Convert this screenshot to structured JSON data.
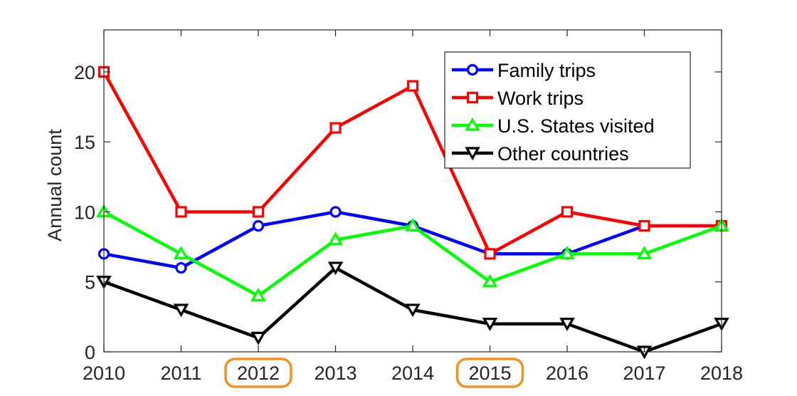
{
  "chart_data": {
    "type": "line",
    "title": "",
    "xlabel": "",
    "ylabel": "Annual count",
    "x": [
      2010,
      2011,
      2012,
      2013,
      2014,
      2015,
      2016,
      2017,
      2018
    ],
    "x_tick_labels": [
      "2010",
      "2011",
      "2012",
      "2013",
      "2014",
      "2015",
      "2016",
      "2017",
      "2018"
    ],
    "xlim": [
      2010,
      2018
    ],
    "ylim": [
      0,
      23
    ],
    "y_ticks": [
      0,
      5,
      10,
      15,
      20
    ],
    "y_tick_labels": [
      "0",
      "5",
      "10",
      "15",
      "20"
    ],
    "grid": false,
    "legend_position": "top-right",
    "highlighted_x_ticks": [
      "2012",
      "2015"
    ],
    "highlight_color": "#f5921e",
    "series": [
      {
        "name": "Family trips",
        "color": "#0000ff",
        "marker": "circle",
        "values": [
          7,
          6,
          9,
          10,
          9,
          7,
          7,
          9,
          9
        ]
      },
      {
        "name": "Work trips",
        "color": "#ff0000",
        "marker": "square",
        "values": [
          20,
          10,
          10,
          16,
          19,
          7,
          10,
          9,
          9
        ]
      },
      {
        "name": "U.S. States visited",
        "color": "#00ff00",
        "marker": "triangle-up",
        "values": [
          10,
          7,
          4,
          8,
          9,
          5,
          7,
          7,
          9
        ]
      },
      {
        "name": "Other countries",
        "color": "#000000",
        "marker": "triangle-down",
        "values": [
          5,
          3,
          1,
          6,
          3,
          2,
          2,
          0,
          2
        ]
      }
    ]
  }
}
